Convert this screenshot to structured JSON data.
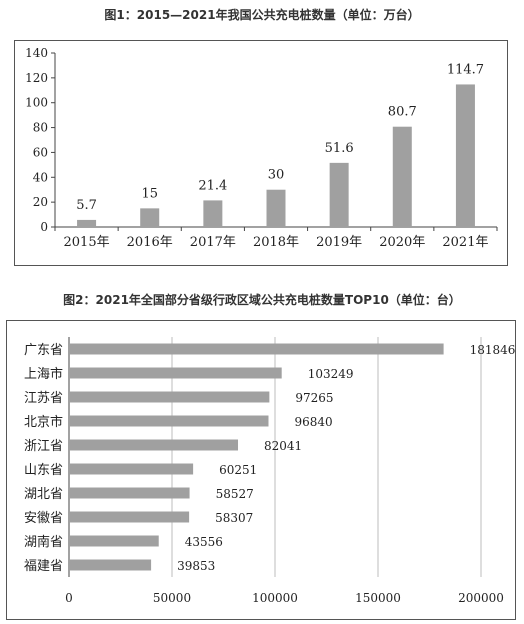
{
  "chart_data": [
    {
      "type": "bar",
      "title": "图1：2015—2021年我国公共充电桩数量（单位：万台）",
      "categories": [
        "2015年",
        "2016年",
        "2017年",
        "2018年",
        "2019年",
        "2020年",
        "2021年"
      ],
      "values": [
        5.7,
        15,
        21.4,
        30,
        51.6,
        80.7,
        114.7
      ],
      "value_labels": [
        "5.7",
        "15",
        "21.4",
        "30",
        "51.6",
        "80.7",
        "114.7"
      ],
      "ylim": [
        0,
        140
      ],
      "yticks": [
        "0",
        "20",
        "40",
        "60",
        "80",
        "100",
        "120",
        "140"
      ],
      "xlabel": "",
      "ylabel": "",
      "grid": false,
      "bar_color": "#a0a0a0"
    },
    {
      "type": "bar",
      "orientation": "horizontal",
      "title": "图2：2021年全国部分省级行政区域公共充电桩数量TOP10（单位：台）",
      "categories": [
        "广东省",
        "上海市",
        "江苏省",
        "北京市",
        "浙江省",
        "山东省",
        "湖北省",
        "安徽省",
        "湖南省",
        "福建省"
      ],
      "values": [
        181846,
        103249,
        97265,
        96840,
        82041,
        60251,
        58527,
        58307,
        43556,
        39853
      ],
      "value_labels": [
        "181846",
        "103249",
        "97265",
        "96840",
        "82041",
        "60251",
        "58527",
        "58307",
        "43556",
        "39853"
      ],
      "xlim": [
        0,
        200000
      ],
      "xticks": [
        "0",
        "50000",
        "100000",
        "150000",
        "200000"
      ],
      "xlabel": "",
      "ylabel": "",
      "grid": true,
      "bar_color": "#a0a0a0"
    }
  ]
}
